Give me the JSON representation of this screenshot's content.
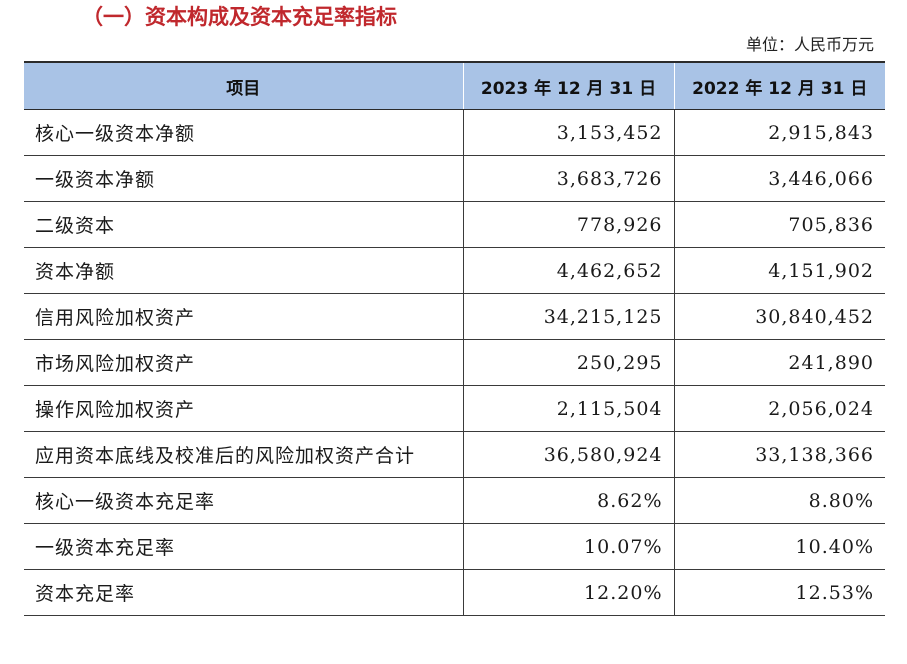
{
  "title": "（一）资本构成及资本充足率指标",
  "unit": "单位：人民币万元",
  "table": {
    "headers": {
      "item": "项目",
      "col_2023": "2023 年 12 月 31 日",
      "col_2022": "2022 年 12 月 31 日"
    },
    "rows": [
      {
        "item": "核心一级资本净额",
        "v2023": "3,153,452",
        "v2022": "2,915,843"
      },
      {
        "item": "一级资本净额",
        "v2023": "3,683,726",
        "v2022": "3,446,066"
      },
      {
        "item": "二级资本",
        "v2023": "778,926",
        "v2022": "705,836"
      },
      {
        "item": "资本净额",
        "v2023": "4,462,652",
        "v2022": "4,151,902"
      },
      {
        "item": "信用风险加权资产",
        "v2023": "34,215,125",
        "v2022": "30,840,452"
      },
      {
        "item": "市场风险加权资产",
        "v2023": "250,295",
        "v2022": "241,890"
      },
      {
        "item": "操作风险加权资产",
        "v2023": "2,115,504",
        "v2022": "2,056,024"
      },
      {
        "item": "应用资本底线及校准后的风险加权资产合计",
        "v2023": "36,580,924",
        "v2022": "33,138,366"
      },
      {
        "item": "核心一级资本充足率",
        "v2023": "8.62%",
        "v2022": "8.80%"
      },
      {
        "item": "一级资本充足率",
        "v2023": "10.07%",
        "v2022": "10.40%"
      },
      {
        "item": "资本充足率",
        "v2023": "12.20%",
        "v2022": "12.53%"
      }
    ]
  },
  "colors": {
    "title": "#c0282d",
    "header_bg": "#a9c3e6"
  }
}
